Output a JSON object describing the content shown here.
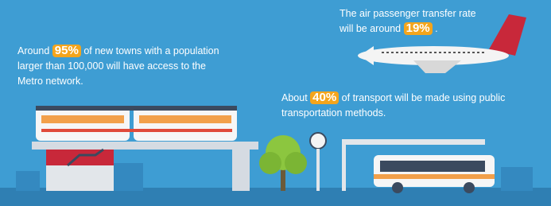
{
  "callouts": [
    {
      "prefix": "Around",
      "highlight": "95%",
      "suffix": "of new towns with a population larger than 100,000 will have access to the Metro network."
    },
    {
      "prefix": "The air passenger transfer rate will be around",
      "highlight": "19%",
      "suffix": "."
    },
    {
      "prefix": "About",
      "highlight": "40%",
      "suffix": "of transport will be made using public transportation methods."
    }
  ]
}
